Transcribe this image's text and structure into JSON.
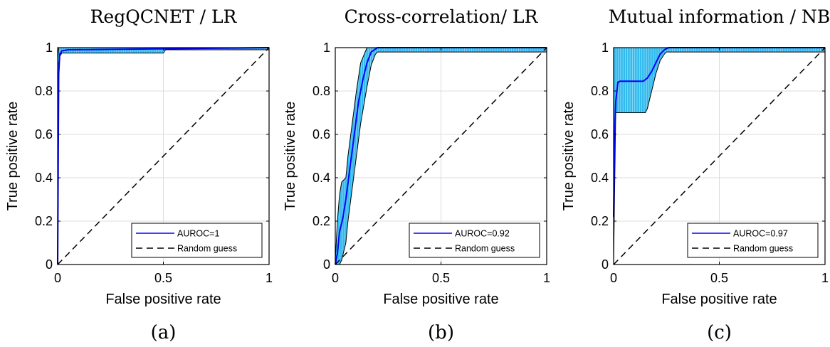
{
  "chart_data": [
    {
      "type": "line",
      "title": "RegQCNET / LR",
      "caption": "(a)",
      "xlabel": "False positive rate",
      "ylabel": "True positive rate",
      "xlim": [
        0,
        1
      ],
      "ylim": [
        0,
        1
      ],
      "xticks": [
        "0",
        "0.5",
        "1"
      ],
      "yticks": [
        "0",
        "0.2",
        "0.4",
        "0.6",
        "0.8",
        "1"
      ],
      "grid": true,
      "legend_position": "bottom-right",
      "colors": {
        "mean": "#0000ff",
        "band": "#33bbee",
        "chance": "#000000"
      },
      "series": [
        {
          "name": "AUROC=1",
          "style": "solid",
          "x": [
            0,
            0.005,
            0.01,
            0.02,
            0.05,
            1
          ],
          "y": [
            0,
            0.88,
            0.97,
            0.985,
            0.99,
            1
          ]
        },
        {
          "name": "Random guess",
          "style": "dashed",
          "x": [
            0,
            1
          ],
          "y": [
            0,
            1
          ]
        }
      ],
      "band": {
        "x": [
          0,
          0.005,
          0.01,
          0.02,
          0.5,
          0.51,
          1
        ],
        "upper": [
          0.95,
          1,
          1,
          1,
          1,
          1,
          1
        ],
        "lower": [
          0,
          0.93,
          0.96,
          0.975,
          0.975,
          0.99,
          0.99
        ]
      }
    },
    {
      "type": "line",
      "title": "Cross-correlation/ LR",
      "caption": "(b)",
      "xlabel": "False positive rate",
      "ylabel": "True positive rate",
      "xlim": [
        0,
        1
      ],
      "ylim": [
        0,
        1
      ],
      "xticks": [
        "0",
        "0.5",
        "1"
      ],
      "yticks": [
        "0",
        "0.2",
        "0.4",
        "0.6",
        "0.8",
        "1"
      ],
      "grid": true,
      "legend_position": "bottom-right",
      "colors": {
        "mean": "#0000ff",
        "band": "#33bbee",
        "chance": "#000000"
      },
      "series": [
        {
          "name": "AUROC=0.92",
          "style": "solid",
          "x": [
            0,
            0.01,
            0.02,
            0.035,
            0.05,
            0.07,
            0.09,
            0.11,
            0.13,
            0.15,
            0.17,
            0.2,
            0.25,
            1
          ],
          "y": [
            0,
            0.05,
            0.15,
            0.21,
            0.3,
            0.45,
            0.6,
            0.75,
            0.85,
            0.93,
            0.98,
            1,
            1,
            1
          ]
        },
        {
          "name": "Random guess",
          "style": "dashed",
          "x": [
            0,
            1
          ],
          "y": [
            0,
            1
          ]
        }
      ],
      "band": {
        "x": [
          0,
          0.01,
          0.02,
          0.03,
          0.05,
          0.06,
          0.08,
          0.1,
          0.12,
          0.15,
          0.17,
          0.19,
          0.2,
          0.22,
          1
        ],
        "upper": [
          0.02,
          0.2,
          0.32,
          0.38,
          0.4,
          0.5,
          0.65,
          0.8,
          0.93,
          1,
          1,
          1,
          1,
          1,
          1
        ],
        "lower": [
          0,
          0,
          0,
          0.02,
          0.1,
          0.2,
          0.35,
          0.5,
          0.65,
          0.82,
          0.92,
          0.97,
          0.98,
          0.98,
          0.98
        ]
      }
    },
    {
      "type": "line",
      "title": "Mutual information / NB",
      "caption": "(c)",
      "xlabel": "False positive rate",
      "ylabel": "True positive rate",
      "xlim": [
        0,
        1
      ],
      "ylim": [
        0,
        1
      ],
      "xticks": [
        "0",
        "0.5",
        "1"
      ],
      "yticks": [
        "0",
        "0.2",
        "0.4",
        "0.6",
        "0.8",
        "1"
      ],
      "grid": true,
      "legend_position": "bottom-right",
      "colors": {
        "mean": "#0000ff",
        "band": "#33bbee",
        "chance": "#000000"
      },
      "series": [
        {
          "name": "AUROC=0.97",
          "style": "solid",
          "x": [
            0,
            0.005,
            0.01,
            0.02,
            0.03,
            0.14,
            0.16,
            0.18,
            0.2,
            0.22,
            0.24,
            0.26,
            1
          ],
          "y": [
            0.22,
            0.6,
            0.75,
            0.84,
            0.845,
            0.845,
            0.86,
            0.89,
            0.93,
            0.97,
            0.99,
            1,
            1
          ]
        },
        {
          "name": "Random guess",
          "style": "dashed",
          "x": [
            0,
            1
          ],
          "y": [
            0,
            1
          ]
        }
      ],
      "band": {
        "x": [
          0,
          0.01,
          0.02,
          0.12,
          0.15,
          0.16,
          0.18,
          0.2,
          0.22,
          0.24,
          0.25,
          0.27,
          1
        ],
        "upper": [
          1,
          1,
          1,
          1,
          1,
          1,
          1,
          1,
          1,
          1,
          1,
          1,
          1
        ],
        "lower": [
          0,
          0.7,
          0.7,
          0.7,
          0.7,
          0.72,
          0.8,
          0.88,
          0.94,
          0.97,
          0.98,
          0.98,
          0.98
        ]
      }
    }
  ]
}
